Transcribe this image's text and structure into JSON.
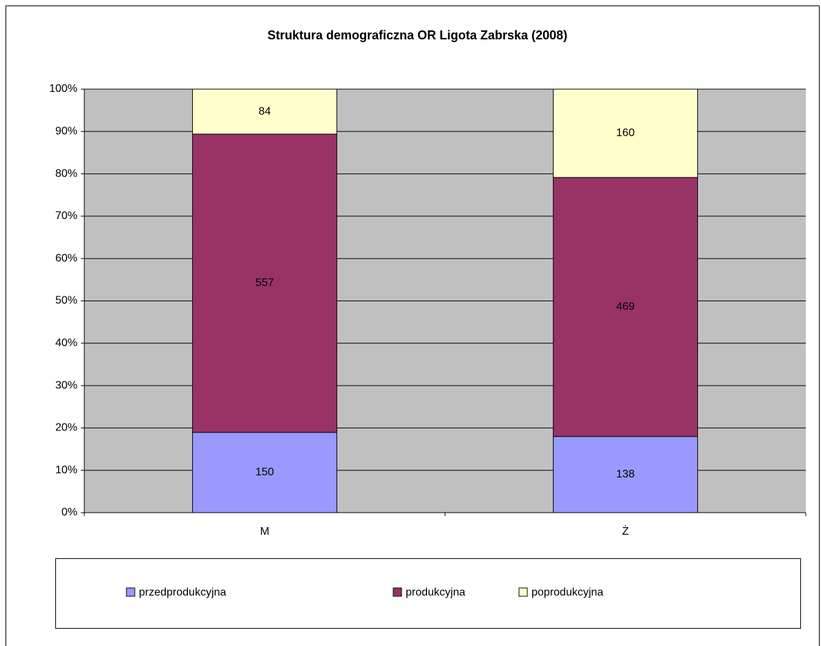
{
  "chart_data": {
    "type": "bar",
    "stacking": "percent",
    "title": "Struktura demograficzna OR Ligota Zabrska (2008)",
    "categories": [
      "M",
      "Ż"
    ],
    "series": [
      {
        "name": "przedprodukcyjna",
        "color": "#9999ff",
        "values": [
          150,
          138
        ]
      },
      {
        "name": "produkcyjna",
        "color": "#993366",
        "values": [
          557,
          469
        ]
      },
      {
        "name": "poprodukcyjna",
        "color": "#ffffcc",
        "values": [
          84,
          160
        ]
      }
    ],
    "ylim": [
      0,
      100
    ],
    "yticks": [
      {
        "value": 0,
        "label": "0%"
      },
      {
        "value": 10,
        "label": "10%"
      },
      {
        "value": 20,
        "label": "20%"
      },
      {
        "value": 30,
        "label": "30%"
      },
      {
        "value": 40,
        "label": "40%"
      },
      {
        "value": 50,
        "label": "50%"
      },
      {
        "value": 60,
        "label": "60%"
      },
      {
        "value": 70,
        "label": "70%"
      },
      {
        "value": 80,
        "label": "80%"
      },
      {
        "value": 90,
        "label": "90%"
      },
      {
        "value": 100,
        "label": "100%"
      }
    ],
    "grid": true,
    "legend": "bottom"
  }
}
